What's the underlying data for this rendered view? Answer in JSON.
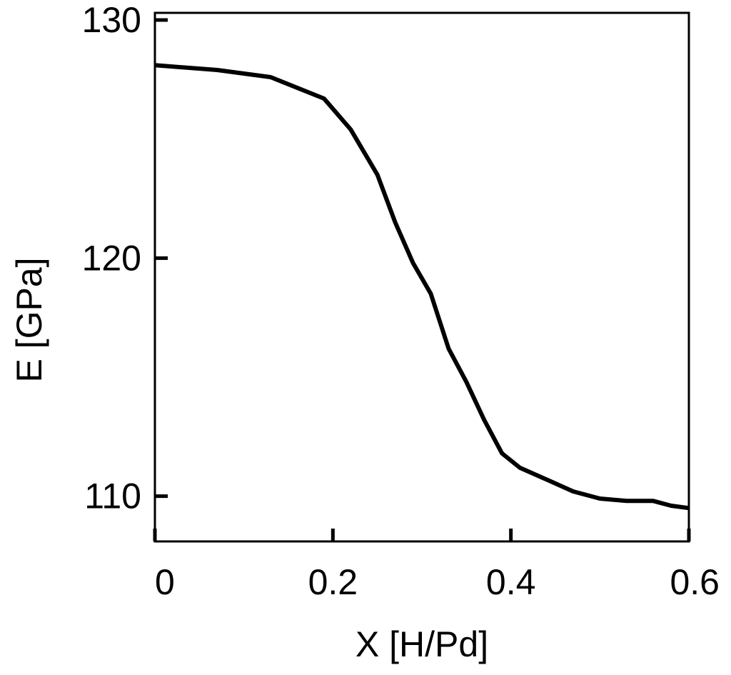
{
  "chart_data": {
    "type": "line",
    "title": "",
    "xlabel": "X [H/Pd]",
    "ylabel": "E [GPa]",
    "xlim": [
      0,
      0.6
    ],
    "ylim": [
      108.1,
      130.3
    ],
    "grid": false,
    "x_ticks": [
      {
        "value": 0,
        "label": "0"
      },
      {
        "value": 0.2,
        "label": "0.2"
      },
      {
        "value": 0.4,
        "label": "0.4"
      },
      {
        "value": 0.6,
        "label": "0.6"
      }
    ],
    "y_ticks": [
      {
        "value": 110,
        "label": "110"
      },
      {
        "value": 120,
        "label": "120"
      },
      {
        "value": 130,
        "label": "130"
      }
    ],
    "series": [
      {
        "color": "#000000",
        "x": [
          0,
          0.07,
          0.13,
          0.19,
          0.22,
          0.25,
          0.27,
          0.29,
          0.31,
          0.33,
          0.35,
          0.37,
          0.39,
          0.41,
          0.44,
          0.47,
          0.5,
          0.53,
          0.56,
          0.58,
          0.6
        ],
        "y": [
          128.1,
          127.9,
          127.6,
          126.7,
          125.4,
          123.5,
          121.5,
          119.8,
          118.5,
          116.2,
          114.8,
          113.2,
          111.8,
          111.2,
          110.7,
          110.2,
          109.9,
          109.8,
          109.8,
          109.6,
          109.5
        ]
      }
    ]
  }
}
